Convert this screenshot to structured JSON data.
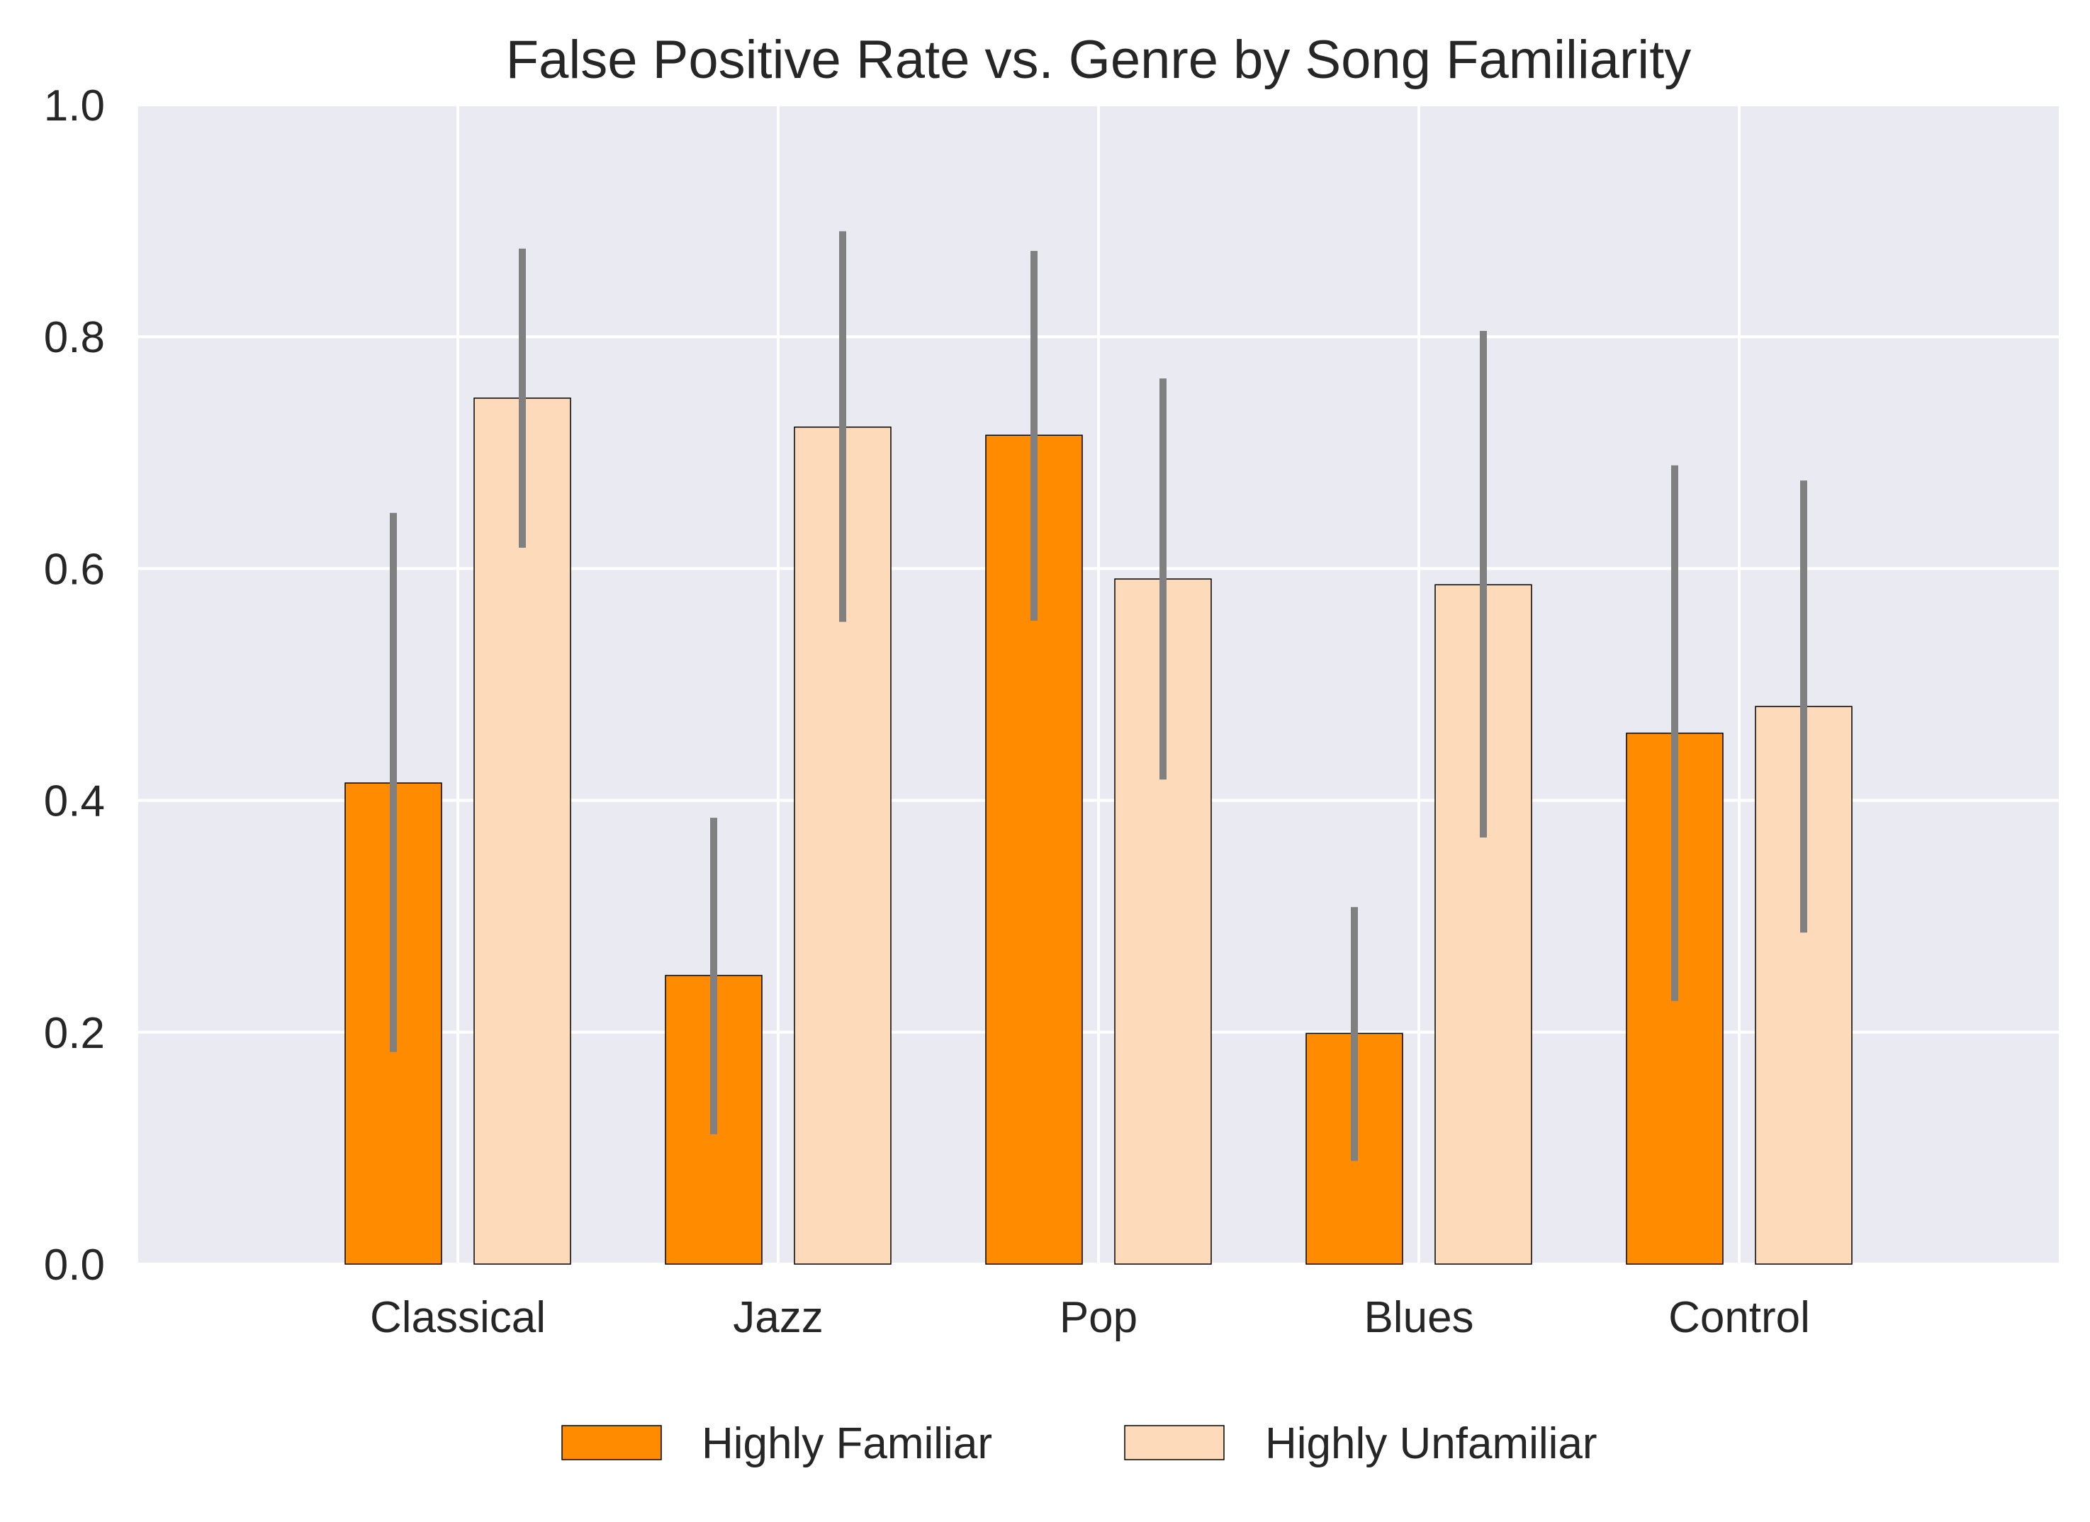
{
  "chart_data": {
    "type": "bar",
    "title": "False Positive Rate vs. Genre by Song Familiarity",
    "xlabel": "",
    "ylabel": "",
    "categories": [
      "Classical",
      "Jazz",
      "Pop",
      "Blues",
      "Control"
    ],
    "ylim": [
      0.0,
      1.0
    ],
    "yticks": [
      "0.0",
      "0.2",
      "0.4",
      "0.6",
      "0.8",
      "1.0"
    ],
    "grid": true,
    "legend_position": "bottom-center",
    "series": [
      {
        "name": "Highly Familiar",
        "color": "#ff8c00",
        "values": [
          0.415,
          0.249,
          0.715,
          0.199,
          0.458
        ],
        "err_low": [
          0.183,
          0.112,
          0.555,
          0.089,
          0.227
        ],
        "err_high": [
          0.648,
          0.385,
          0.874,
          0.308,
          0.689
        ]
      },
      {
        "name": "Highly Unfamiliar",
        "color": "#fddab9",
        "values": [
          0.747,
          0.722,
          0.591,
          0.586,
          0.481
        ],
        "err_low": [
          0.618,
          0.554,
          0.418,
          0.368,
          0.286
        ],
        "err_high": [
          0.876,
          0.891,
          0.764,
          0.805,
          0.676
        ]
      }
    ],
    "colors": {
      "plot_background": "#eaeaf2",
      "grid": "#ffffff",
      "error_bar": "#808080",
      "bar_edge": "#000000"
    }
  }
}
